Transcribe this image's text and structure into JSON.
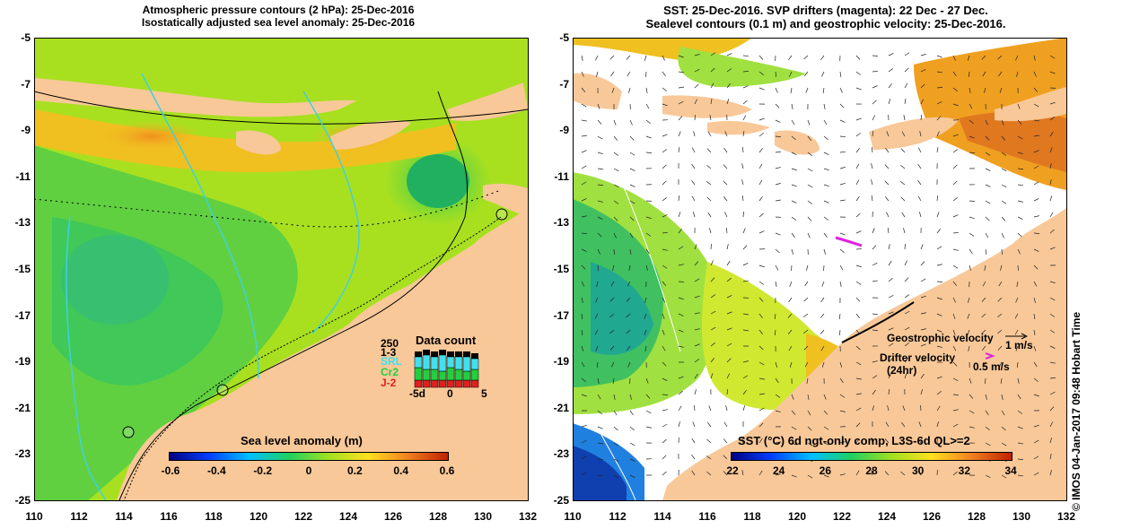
{
  "left_panel": {
    "title_line1": "Atmospheric pressure contours (2 hPa): 25-Dec-2016",
    "title_line2": "Isostatically adjusted sea level anomaly: 25-Dec-2016",
    "colorbar_title": "Sea level anomaly (m)",
    "colorbar_ticks": [
      "-0.6",
      "-0.4",
      "-0.2",
      "0",
      "0.2",
      "0.4",
      "0.6"
    ],
    "data_count": {
      "title": "Data count",
      "y_labels": [
        "250",
        "1-3"
      ],
      "series_labels": [
        "SRL",
        "Cr2",
        "J-2"
      ],
      "series_colors": [
        "#40e0f0",
        "#20d040",
        "#e02020"
      ],
      "x_ticks": [
        "-5d",
        "0",
        "5"
      ]
    }
  },
  "right_panel": {
    "title_line1": "SST: 25-Dec-2016. SVP drifters (magenta): 22 Dec - 27 Dec.",
    "title_line2": "Sealevel contours (0.1 m) and geostrophic velocity: 25-Dec-2016.",
    "colorbar_title": "SST (°C) 6d ngt-only comp, L3S-6d QL>=2",
    "colorbar_ticks": [
      "22",
      "24",
      "26",
      "28",
      "30",
      "32",
      "34"
    ],
    "geostrophic_label": "Geostrophic velocity",
    "geostrophic_scale": "1 m/s",
    "drifter_label": "Drifter velocity",
    "drifter_sub": "(24hr)",
    "drifter_scale": "0.5 m/s"
  },
  "axes": {
    "y_labels": [
      "-5",
      "-7",
      "-9",
      "-11",
      "-13",
      "-15",
      "-17",
      "-19",
      "-21",
      "-23",
      "-25"
    ],
    "x_labels": [
      "110",
      "112",
      "114",
      "116",
      "118",
      "120",
      "122",
      "124",
      "126",
      "128",
      "130",
      "132"
    ]
  },
  "side_credit": "© IMOS 04-Jan-2017 09:48 Hobart Time",
  "colors": {
    "land": "#f8c898",
    "sla_background": "#a8e020",
    "sst_background": "#ffffff",
    "drifter": "#e020e0"
  }
}
